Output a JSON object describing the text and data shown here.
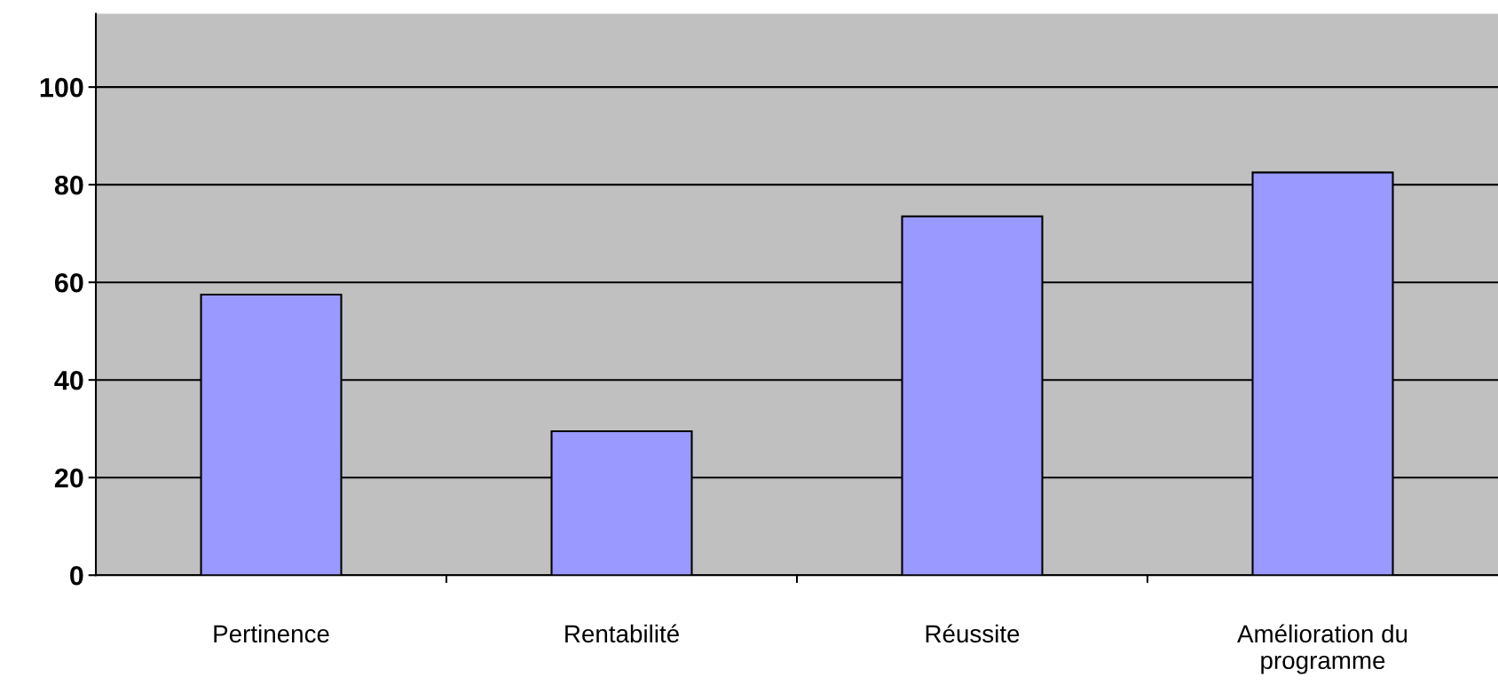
{
  "chart_data": {
    "type": "bar",
    "categories": [
      "Pertinence",
      "Rentabilité",
      "Réussite",
      "Amélioration du\nprogramme"
    ],
    "values": [
      57.5,
      29.5,
      73.5,
      82.5
    ],
    "color": "#9999ff",
    "ylim": [
      0,
      115
    ],
    "yticks": [
      0,
      20,
      40,
      60,
      80,
      100
    ],
    "grid": "y"
  }
}
